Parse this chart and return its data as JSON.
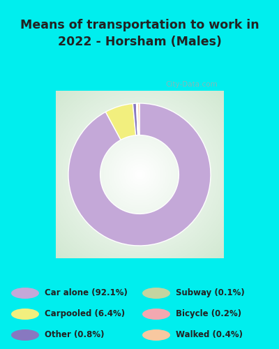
{
  "title": "Means of transportation to work in\n2022 - Horsham (Males)",
  "segments": [
    {
      "label": "Car alone (92.1%)",
      "value": 92.1,
      "color": "#C4A8D8"
    },
    {
      "label": "Carpooled (6.4%)",
      "value": 6.4,
      "color": "#F2EF7E"
    },
    {
      "label": "Other (0.8%)",
      "value": 0.8,
      "color": "#8878C0"
    },
    {
      "label": "Subway (0.1%)",
      "value": 0.1,
      "color": "#C4D4A0"
    },
    {
      "label": "Bicycle (0.2%)",
      "value": 0.2,
      "color": "#F2A8B0"
    },
    {
      "label": "Walked (0.4%)",
      "value": 0.4,
      "color": "#F8C8A0"
    }
  ],
  "legend_left": [
    {
      "label": "Car alone (92.1%)",
      "color": "#C4A8D8"
    },
    {
      "label": "Carpooled (6.4%)",
      "color": "#F2EF7E"
    },
    {
      "label": "Other (0.8%)",
      "color": "#8878C0"
    }
  ],
  "legend_right": [
    {
      "label": "Subway (0.1%)",
      "color": "#C4D4A0"
    },
    {
      "label": "Bicycle (0.2%)",
      "color": "#F2A8B0"
    },
    {
      "label": "Walked (0.4%)",
      "color": "#F8C8A0"
    }
  ],
  "bg_outer": "#00EEEE",
  "bg_legend": "#00EEEE",
  "title_color": "#222222",
  "legend_text_color": "#222222",
  "watermark": "City-Data.com"
}
